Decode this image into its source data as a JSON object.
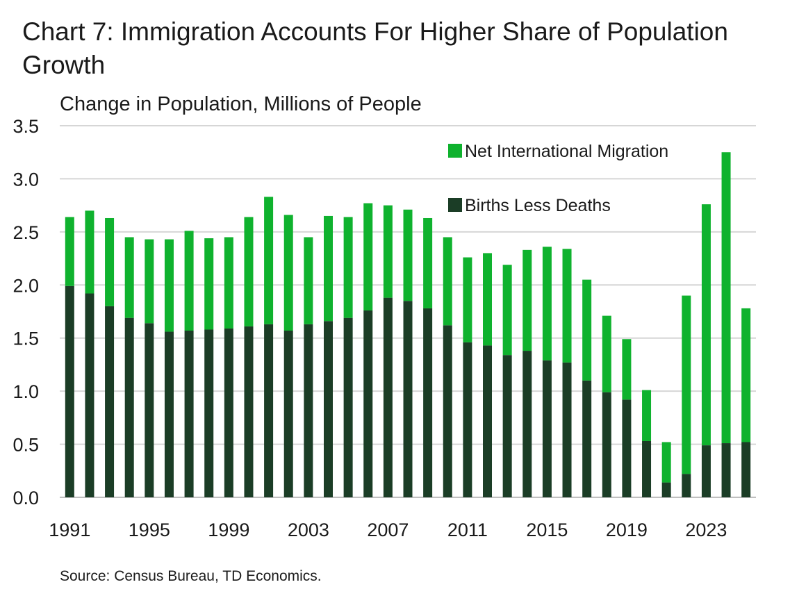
{
  "header": {
    "title": "Chart 7: Immigration Accounts For Higher Share of Population Growth",
    "subtitle": "Change in Population, Millions of People"
  },
  "footer": {
    "source": "Source: Census Bureau, TD Economics."
  },
  "colors": {
    "births_less_deaths": "#1b3d26",
    "net_international_migration": "#0fb22e",
    "gridline": "#d6d6d6",
    "axis": "#bfbfbf"
  },
  "chart_data": {
    "type": "bar",
    "stacked": true,
    "years": [
      1991,
      1992,
      1993,
      1994,
      1995,
      1996,
      1997,
      1998,
      1999,
      2000,
      2001,
      2002,
      2003,
      2004,
      2005,
      2006,
      2007,
      2008,
      2009,
      2010,
      2011,
      2012,
      2013,
      2014,
      2015,
      2016,
      2017,
      2018,
      2019,
      2020,
      2021,
      2022,
      2023,
      2024,
      2025
    ],
    "x_tick_labels": [
      "1991",
      "1995",
      "1999",
      "2003",
      "2007",
      "2011",
      "2015",
      "2019",
      "2023"
    ],
    "series": [
      {
        "name": "Births Less Deaths",
        "color": "#1b3d26",
        "values": [
          1.99,
          1.92,
          1.8,
          1.69,
          1.64,
          1.56,
          1.57,
          1.58,
          1.59,
          1.61,
          1.63,
          1.57,
          1.63,
          1.66,
          1.69,
          1.76,
          1.88,
          1.85,
          1.78,
          1.62,
          1.46,
          1.43,
          1.34,
          1.38,
          1.29,
          1.27,
          1.1,
          0.99,
          0.92,
          0.53,
          0.14,
          0.22,
          0.49,
          0.51,
          0.52
        ]
      },
      {
        "name": "Net International Migration",
        "color": "#0fb22e",
        "values": [
          0.65,
          0.78,
          0.83,
          0.76,
          0.79,
          0.87,
          0.94,
          0.86,
          0.86,
          1.03,
          1.2,
          1.09,
          0.82,
          0.99,
          0.95,
          1.01,
          0.87,
          0.86,
          0.85,
          0.83,
          0.8,
          0.87,
          0.85,
          0.95,
          1.07,
          1.07,
          0.95,
          0.72,
          0.57,
          0.48,
          0.38,
          1.68,
          2.27,
          2.74,
          1.26
        ]
      }
    ],
    "legend_order": [
      "Net International Migration",
      "Births Less Deaths"
    ],
    "legend_position": "top-right",
    "yticks": [
      "0.0",
      "0.5",
      "1.0",
      "1.5",
      "2.0",
      "2.5",
      "3.0",
      "3.5"
    ],
    "ylim": [
      0,
      3.5
    ],
    "grid": true,
    "xlabel": "",
    "ylabel": ""
  }
}
